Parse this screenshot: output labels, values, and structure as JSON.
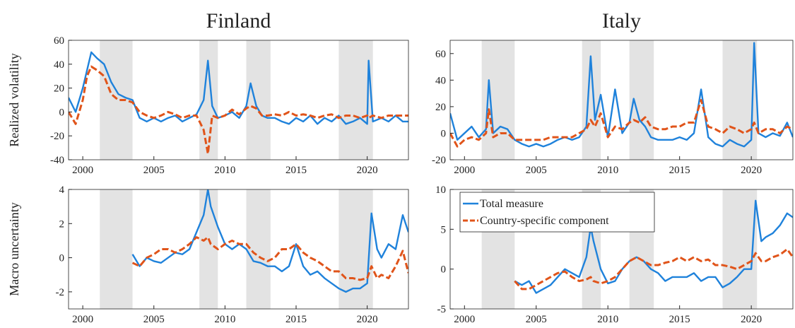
{
  "chart_data": [
    {
      "type": "line",
      "title": "Finland",
      "ylabel": "Realized volatility",
      "xlim": [
        1999,
        2022.9
      ],
      "xticks": [
        2000,
        2005,
        2010,
        2015,
        2020
      ],
      "ylim": [
        -40,
        60
      ],
      "yticks": [
        -40,
        -20,
        0,
        20,
        40,
        60
      ],
      "shaded": [
        [
          2001.2,
          2003.5
        ],
        [
          2008.2,
          2009.5
        ],
        [
          2011.5,
          2013.2
        ],
        [
          2018,
          2020.4
        ]
      ],
      "x": [
        1999,
        1999.5,
        2000,
        2000.3,
        2000.6,
        2001,
        2001.5,
        2002,
        2002.5,
        2003,
        2003.5,
        2004,
        2004.5,
        2005,
        2005.5,
        2006,
        2006.5,
        2007,
        2007.5,
        2008,
        2008.5,
        2008.8,
        2009.1,
        2009.5,
        2010,
        2010.5,
        2011,
        2011.5,
        2011.8,
        2012.2,
        2012.6,
        2013,
        2013.5,
        2014,
        2014.5,
        2015,
        2015.5,
        2016,
        2016.5,
        2017,
        2017.5,
        2018,
        2018.5,
        2019,
        2019.5,
        2020,
        2020.1,
        2020.4,
        2021,
        2021.5,
        2022,
        2022.5,
        2022.9
      ],
      "series": [
        {
          "color": "#1f82db",
          "style": "solid",
          "values": [
            12,
            0,
            20,
            35,
            50,
            45,
            40,
            25,
            15,
            12,
            10,
            -5,
            -8,
            -5,
            -8,
            -5,
            -3,
            -8,
            -5,
            -2,
            10,
            43,
            5,
            -5,
            -3,
            0,
            -5,
            5,
            24,
            5,
            -3,
            -5,
            -5,
            -8,
            -10,
            -5,
            -8,
            -3,
            -10,
            -5,
            -8,
            -3,
            -10,
            -8,
            -5,
            -10,
            43,
            -8,
            -5,
            -8,
            -3,
            -8,
            -8
          ]
        },
        {
          "color": "#e0541a",
          "style": "dashed",
          "values": [
            0,
            -10,
            10,
            30,
            38,
            35,
            30,
            15,
            10,
            10,
            8,
            0,
            -3,
            -5,
            -3,
            0,
            -2,
            -5,
            -3,
            -3,
            -15,
            -35,
            -3,
            -5,
            -3,
            2,
            -2,
            3,
            5,
            3,
            -3,
            -3,
            -2,
            -3,
            0,
            -3,
            -2,
            -3,
            -5,
            -3,
            -2,
            -5,
            -3,
            -3,
            -5,
            -3,
            -5,
            -3,
            -5,
            -3,
            -3,
            -3,
            -3
          ]
        }
      ]
    },
    {
      "type": "line",
      "title": "Italy",
      "xlim": [
        1999,
        2022.9
      ],
      "xticks": [
        2000,
        2005,
        2010,
        2015,
        2020
      ],
      "ylim": [
        -20,
        70
      ],
      "yticks": [
        -20,
        0,
        20,
        40,
        60
      ],
      "shaded": [
        [
          2001.2,
          2003.5
        ],
        [
          2008.2,
          2009.5
        ],
        [
          2011.5,
          2013.2
        ],
        [
          2018,
          2020.4
        ]
      ],
      "x": [
        1999,
        1999.5,
        2000,
        2000.5,
        2001,
        2001.5,
        2001.7,
        2002,
        2002.5,
        2003,
        2003.5,
        2004,
        2004.5,
        2005,
        2005.5,
        2006,
        2006.5,
        2007,
        2007.5,
        2008,
        2008.5,
        2008.8,
        2009.1,
        2009.5,
        2010,
        2010.5,
        2011,
        2011.5,
        2011.8,
        2012.2,
        2012.6,
        2013,
        2013.5,
        2014,
        2014.5,
        2015,
        2015.5,
        2016,
        2016.5,
        2017,
        2017.5,
        2018,
        2018.5,
        2019,
        2019.5,
        2020,
        2020.2,
        2020.5,
        2021,
        2021.5,
        2022,
        2022.5,
        2022.9
      ],
      "series": [
        {
          "color": "#1f82db",
          "style": "solid",
          "values": [
            15,
            -5,
            0,
            5,
            -3,
            3,
            40,
            0,
            5,
            3,
            -5,
            -8,
            -10,
            -8,
            -10,
            -8,
            -5,
            -3,
            -5,
            -3,
            5,
            58,
            10,
            29,
            -3,
            33,
            0,
            8,
            26,
            10,
            5,
            -3,
            -5,
            -5,
            -5,
            -3,
            -5,
            0,
            33,
            -3,
            -8,
            -10,
            -5,
            -8,
            -10,
            -5,
            68,
            0,
            -3,
            0,
            -2,
            8,
            -3
          ]
        },
        {
          "color": "#e0541a",
          "style": "dashed",
          "values": [
            0,
            -10,
            -5,
            -3,
            -5,
            0,
            18,
            -3,
            0,
            0,
            -5,
            -5,
            -5,
            -5,
            -5,
            -3,
            -3,
            -3,
            -3,
            0,
            3,
            10,
            5,
            15,
            -3,
            5,
            3,
            8,
            10,
            8,
            12,
            5,
            3,
            3,
            5,
            5,
            8,
            8,
            25,
            5,
            3,
            0,
            5,
            3,
            0,
            3,
            8,
            0,
            3,
            3,
            0,
            5,
            3
          ]
        }
      ]
    },
    {
      "type": "line",
      "ylabel": "Macro uncertainty",
      "xlim": [
        1999,
        2022.9
      ],
      "xticks": [
        2000,
        2005,
        2010,
        2015,
        2020
      ],
      "ylim": [
        -3,
        4
      ],
      "yticks": [
        -2,
        0,
        2,
        4
      ],
      "shaded": [
        [
          2001.2,
          2003.5
        ],
        [
          2008.2,
          2009.5
        ],
        [
          2011.5,
          2013.2
        ],
        [
          2018,
          2020.4
        ]
      ],
      "x": [
        2003.5,
        2004,
        2004.5,
        2005,
        2005.5,
        2006,
        2006.5,
        2007,
        2007.5,
        2008,
        2008.5,
        2008.8,
        2009,
        2009.5,
        2010,
        2010.5,
        2011,
        2011.5,
        2012,
        2012.5,
        2013,
        2013.5,
        2014,
        2014.5,
        2015,
        2015.5,
        2016,
        2016.5,
        2017,
        2017.5,
        2018,
        2018.5,
        2019,
        2019.5,
        2020,
        2020.3,
        2020.7,
        2021,
        2021.5,
        2022,
        2022.5,
        2022.9
      ],
      "series": [
        {
          "color": "#1f82db",
          "style": "solid",
          "values": [
            0.2,
            -0.5,
            0,
            -0.2,
            -0.3,
            0,
            0.3,
            0.2,
            0.5,
            1.5,
            2.5,
            4,
            3,
            1.8,
            0.8,
            0.5,
            0.8,
            0.5,
            -0.2,
            -0.3,
            -0.5,
            -0.5,
            -0.8,
            -0.5,
            0.8,
            -0.5,
            -1,
            -0.8,
            -1.2,
            -1.5,
            -1.8,
            -2,
            -1.8,
            -1.8,
            -1.5,
            2.6,
            0.5,
            0,
            0.8,
            0.5,
            2.5,
            1.5
          ]
        },
        {
          "color": "#e0541a",
          "style": "dashed",
          "values": [
            -0.3,
            -0.5,
            0,
            0.2,
            0.5,
            0.5,
            0.3,
            0.5,
            0.8,
            1.2,
            1,
            1.2,
            0.8,
            0.5,
            0.8,
            1,
            0.8,
            0.8,
            0.3,
            0,
            -0.2,
            0,
            0.5,
            0.5,
            0.8,
            0.3,
            0,
            -0.2,
            -0.5,
            -0.8,
            -0.8,
            -1.2,
            -1.2,
            -1.3,
            -1.2,
            -0.5,
            -1.2,
            -1,
            -1.2,
            -0.5,
            0.4,
            -0.9
          ]
        }
      ]
    },
    {
      "type": "line",
      "legend": "upper left",
      "xlim": [
        1999,
        2022.9
      ],
      "xticks": [
        2000,
        2005,
        2010,
        2015,
        2020
      ],
      "ylim": [
        -5,
        10
      ],
      "yticks": [
        -5,
        0,
        5,
        10
      ],
      "shaded": [
        [
          2001.2,
          2003.5
        ],
        [
          2008.2,
          2009.5
        ],
        [
          2011.5,
          2013.2
        ],
        [
          2018,
          2020.4
        ]
      ],
      "x": [
        2003.5,
        2004,
        2004.5,
        2005,
        2005.5,
        2006,
        2006.5,
        2007,
        2007.5,
        2008,
        2008.5,
        2008.8,
        2009,
        2009.5,
        2010,
        2010.5,
        2011,
        2011.5,
        2012,
        2012.5,
        2013,
        2013.5,
        2014,
        2014.5,
        2015,
        2015.5,
        2016,
        2016.5,
        2017,
        2017.5,
        2018,
        2018.5,
        2019,
        2019.5,
        2020,
        2020.3,
        2020.7,
        2021,
        2021.5,
        2022,
        2022.5,
        2022.9
      ],
      "series": [
        {
          "name": "Total measure",
          "color": "#1f82db",
          "style": "solid",
          "values": [
            -1.5,
            -2,
            -1.5,
            -3,
            -2.5,
            -2,
            -1,
            0,
            -0.5,
            -1,
            1.5,
            5.3,
            3.5,
            0,
            -1.8,
            -1.5,
            0,
            1,
            1.5,
            1,
            0,
            -0.5,
            -1.5,
            -1,
            -1,
            -1,
            -0.5,
            -1.5,
            -1,
            -1,
            -2.3,
            -1.8,
            -1,
            0,
            0,
            8.6,
            3.5,
            4,
            4.5,
            5.5,
            7,
            6.5
          ]
        },
        {
          "name": "Country-specific component",
          "color": "#e0541a",
          "style": "dashed",
          "values": [
            -1.5,
            -2.5,
            -2.5,
            -2,
            -1.5,
            -1,
            -0.5,
            -0.3,
            -1,
            -1.5,
            -1.3,
            -1,
            -1.5,
            -1.8,
            -1.5,
            -1,
            0,
            1,
            1.5,
            1,
            0.5,
            0.5,
            0.8,
            1,
            1.5,
            1,
            1.5,
            1,
            1.2,
            0.5,
            0.5,
            0.3,
            0,
            0.5,
            1,
            2,
            1,
            1,
            1.5,
            1.8,
            2.5,
            1.5
          ]
        }
      ]
    }
  ]
}
